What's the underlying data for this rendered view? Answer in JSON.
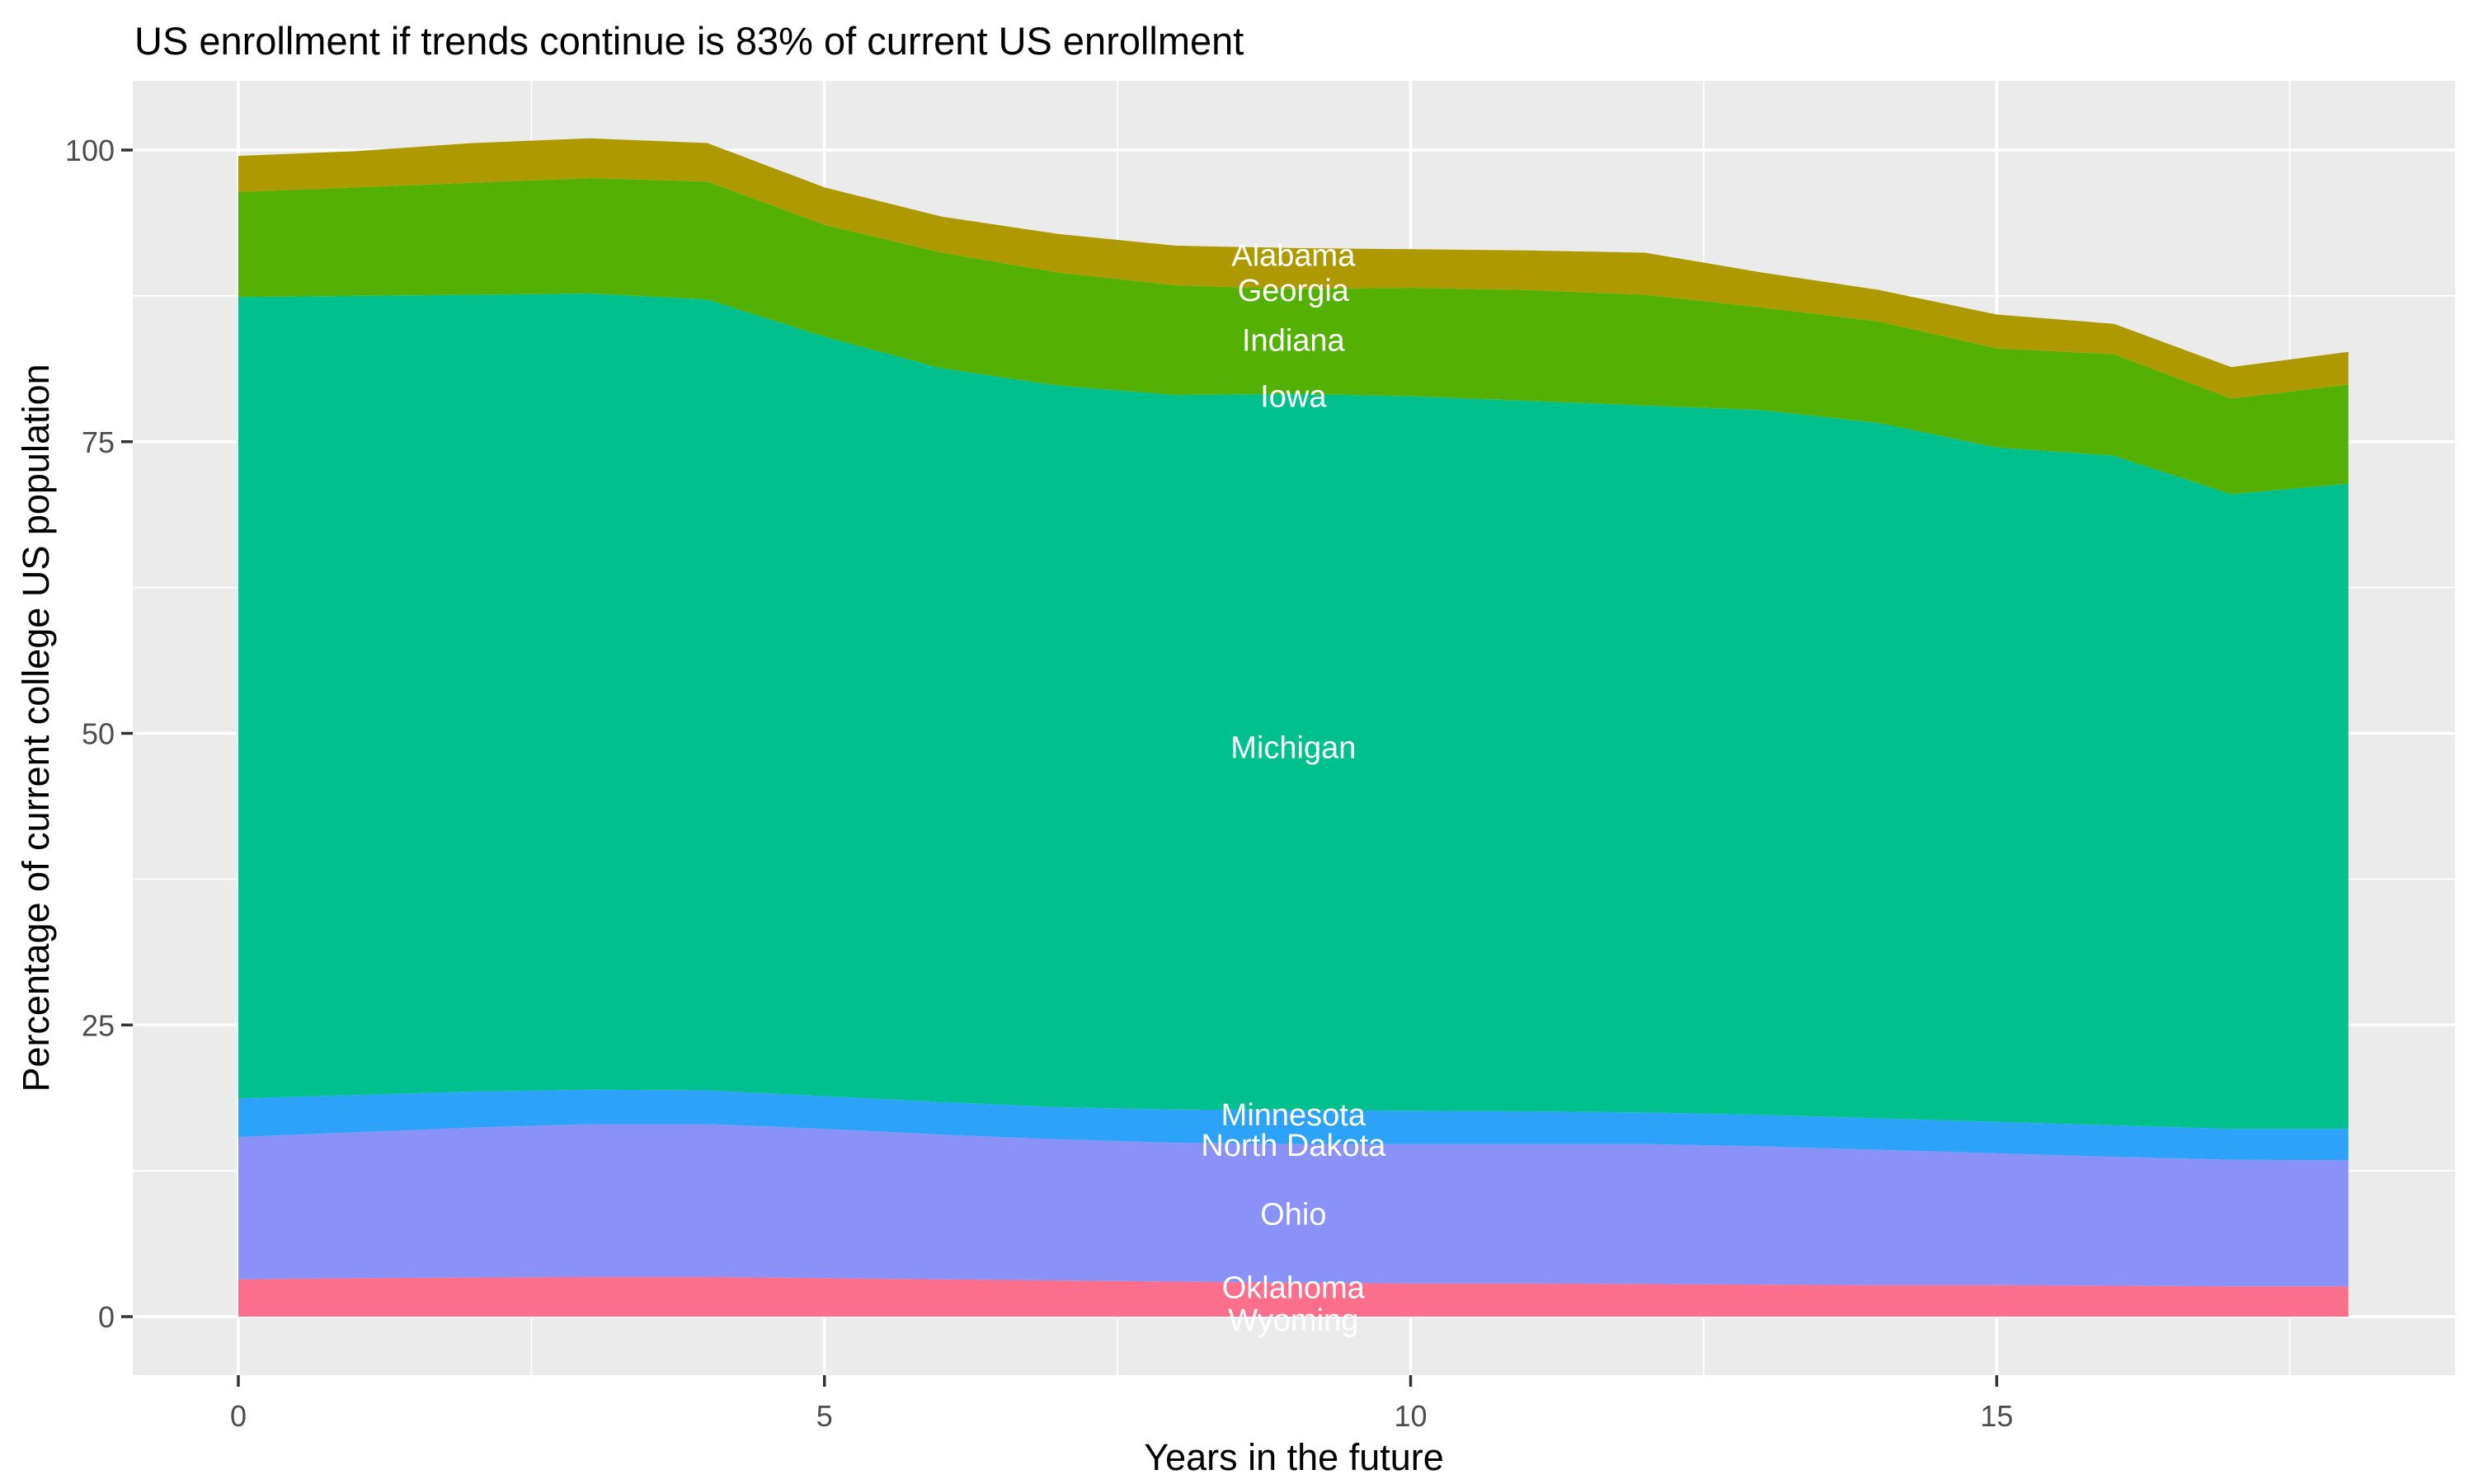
{
  "title": "US enrollment if trends continue is 83% of current US enrollment",
  "chart_data": {
    "type": "area",
    "stacked": true,
    "title": "US enrollment if trends continue is 83% of current US enrollment",
    "xlabel": "Years in the future",
    "ylabel": "Percentage of current college US population",
    "x": [
      0,
      1,
      2,
      3,
      4,
      5,
      6,
      7,
      8,
      9,
      10,
      11,
      12,
      13,
      14,
      15,
      16,
      17,
      18
    ],
    "xlim": [
      0,
      18
    ],
    "ylim": [
      0,
      101
    ],
    "x_ticks": [
      0,
      5,
      10,
      15
    ],
    "y_ticks": [
      0,
      25,
      50,
      75,
      100
    ],
    "x_minor_ticks": [
      2.5,
      7.5,
      12.5,
      17.5
    ],
    "y_minor_ticks": [
      12.5,
      37.5,
      62.5,
      87.5
    ],
    "grid": "white major+minor on grey panel",
    "legend": "none (direct white labels on areas)",
    "panel_bg": "#EBEBEB",
    "grid_color": "#FFFFFF",
    "tick_mark_color": "#333333",
    "tick_label_color": "#4D4D4D",
    "area_label_color": "#FFFFFF",
    "stack_order_bottom_to_top": [
      "Wyoming",
      "Oklahoma",
      "Ohio",
      "North Dakota",
      "Minnesota",
      "Michigan",
      "Iowa",
      "Indiana",
      "Georgia",
      "Alabama"
    ],
    "series": [
      {
        "name": "Wyoming",
        "color": "#E76BF3",
        "values": [
          0,
          0,
          0,
          0,
          0,
          0,
          0,
          0,
          0,
          0,
          0,
          0,
          0,
          0,
          0,
          0,
          0,
          0,
          0
        ]
      },
      {
        "name": "Oklahoma",
        "color": "#FB6E8C",
        "values": [
          3.2,
          3.3,
          3.35,
          3.4,
          3.4,
          3.3,
          3.2,
          3.1,
          3.0,
          2.9,
          2.85,
          2.85,
          2.8,
          2.75,
          2.7,
          2.7,
          2.65,
          2.6,
          2.6
        ]
      },
      {
        "name": "Ohio",
        "color": "#8A92F8",
        "values": [
          12.2,
          12.5,
          12.85,
          13.1,
          13.1,
          12.8,
          12.4,
          12.1,
          11.9,
          11.9,
          11.95,
          11.95,
          12.0,
          11.85,
          11.6,
          11.3,
          11.05,
          10.85,
          10.8
        ]
      },
      {
        "name": "North Dakota",
        "color": "#00B0F6",
        "values": [
          0,
          0,
          0,
          0,
          0,
          0,
          0,
          0,
          0,
          0,
          0,
          0,
          0,
          0,
          0,
          0,
          0,
          0,
          0
        ]
      },
      {
        "name": "Minnesota",
        "color": "#2DA2F9",
        "values": [
          3.3,
          3.2,
          3.1,
          2.95,
          2.9,
          2.8,
          2.8,
          2.75,
          2.85,
          2.9,
          2.85,
          2.8,
          2.7,
          2.7,
          2.7,
          2.7,
          2.7,
          2.65,
          2.7
        ]
      },
      {
        "name": "Michigan",
        "color": "#00C18E",
        "values": [
          68.7,
          68.5,
          68.3,
          68.25,
          67.8,
          65.1,
          62.9,
          61.85,
          61.25,
          61.4,
          61.25,
          60.9,
          60.6,
          60.4,
          59.6,
          57.8,
          57.4,
          54.4,
          55.3
        ]
      },
      {
        "name": "Iowa",
        "color": "#00BFC4",
        "values": [
          0,
          0,
          0,
          0,
          0,
          0,
          0,
          0,
          0,
          0,
          0,
          0,
          0,
          0,
          0,
          0,
          0,
          0,
          0
        ]
      },
      {
        "name": "Indiana",
        "color": "#55B004",
        "values": [
          9.0,
          9.3,
          9.6,
          9.9,
          10.1,
          9.6,
          9.9,
          9.7,
          9.4,
          9.0,
          9.3,
          9.5,
          9.5,
          8.8,
          8.7,
          8.5,
          8.7,
          8.2,
          8.5
        ]
      },
      {
        "name": "Georgia",
        "color": "#D89000",
        "values": [
          0,
          0,
          0,
          0,
          0,
          0,
          0,
          0,
          0,
          0,
          0,
          0,
          0,
          0,
          0,
          0,
          0,
          0,
          0
        ]
      },
      {
        "name": "Alabama",
        "color": "#AE9A00",
        "values": [
          3.1,
          3.1,
          3.4,
          3.4,
          3.3,
          3.2,
          3.1,
          3.3,
          3.4,
          3.5,
          3.3,
          3.4,
          3.6,
          3.0,
          2.7,
          2.9,
          2.6,
          2.7,
          2.8
        ]
      }
    ],
    "annotations": [
      {
        "text": "Alabama",
        "x": 9,
        "y": 91.0
      },
      {
        "text": "Georgia",
        "x": 9,
        "y": 88.0
      },
      {
        "text": "Indiana",
        "x": 9,
        "y": 83.7
      },
      {
        "text": "Iowa",
        "x": 9,
        "y": 78.9
      },
      {
        "text": "Michigan",
        "x": 9,
        "y": 48.8
      },
      {
        "text": "Minnesota",
        "x": 9,
        "y": 17.3
      },
      {
        "text": "North Dakota",
        "x": 9,
        "y": 14.7
      },
      {
        "text": "Ohio",
        "x": 9,
        "y": 8.8
      },
      {
        "text": "Oklahoma",
        "x": 9,
        "y": 2.5
      },
      {
        "text": "Wyoming",
        "x": 9,
        "y": -0.3
      }
    ]
  }
}
